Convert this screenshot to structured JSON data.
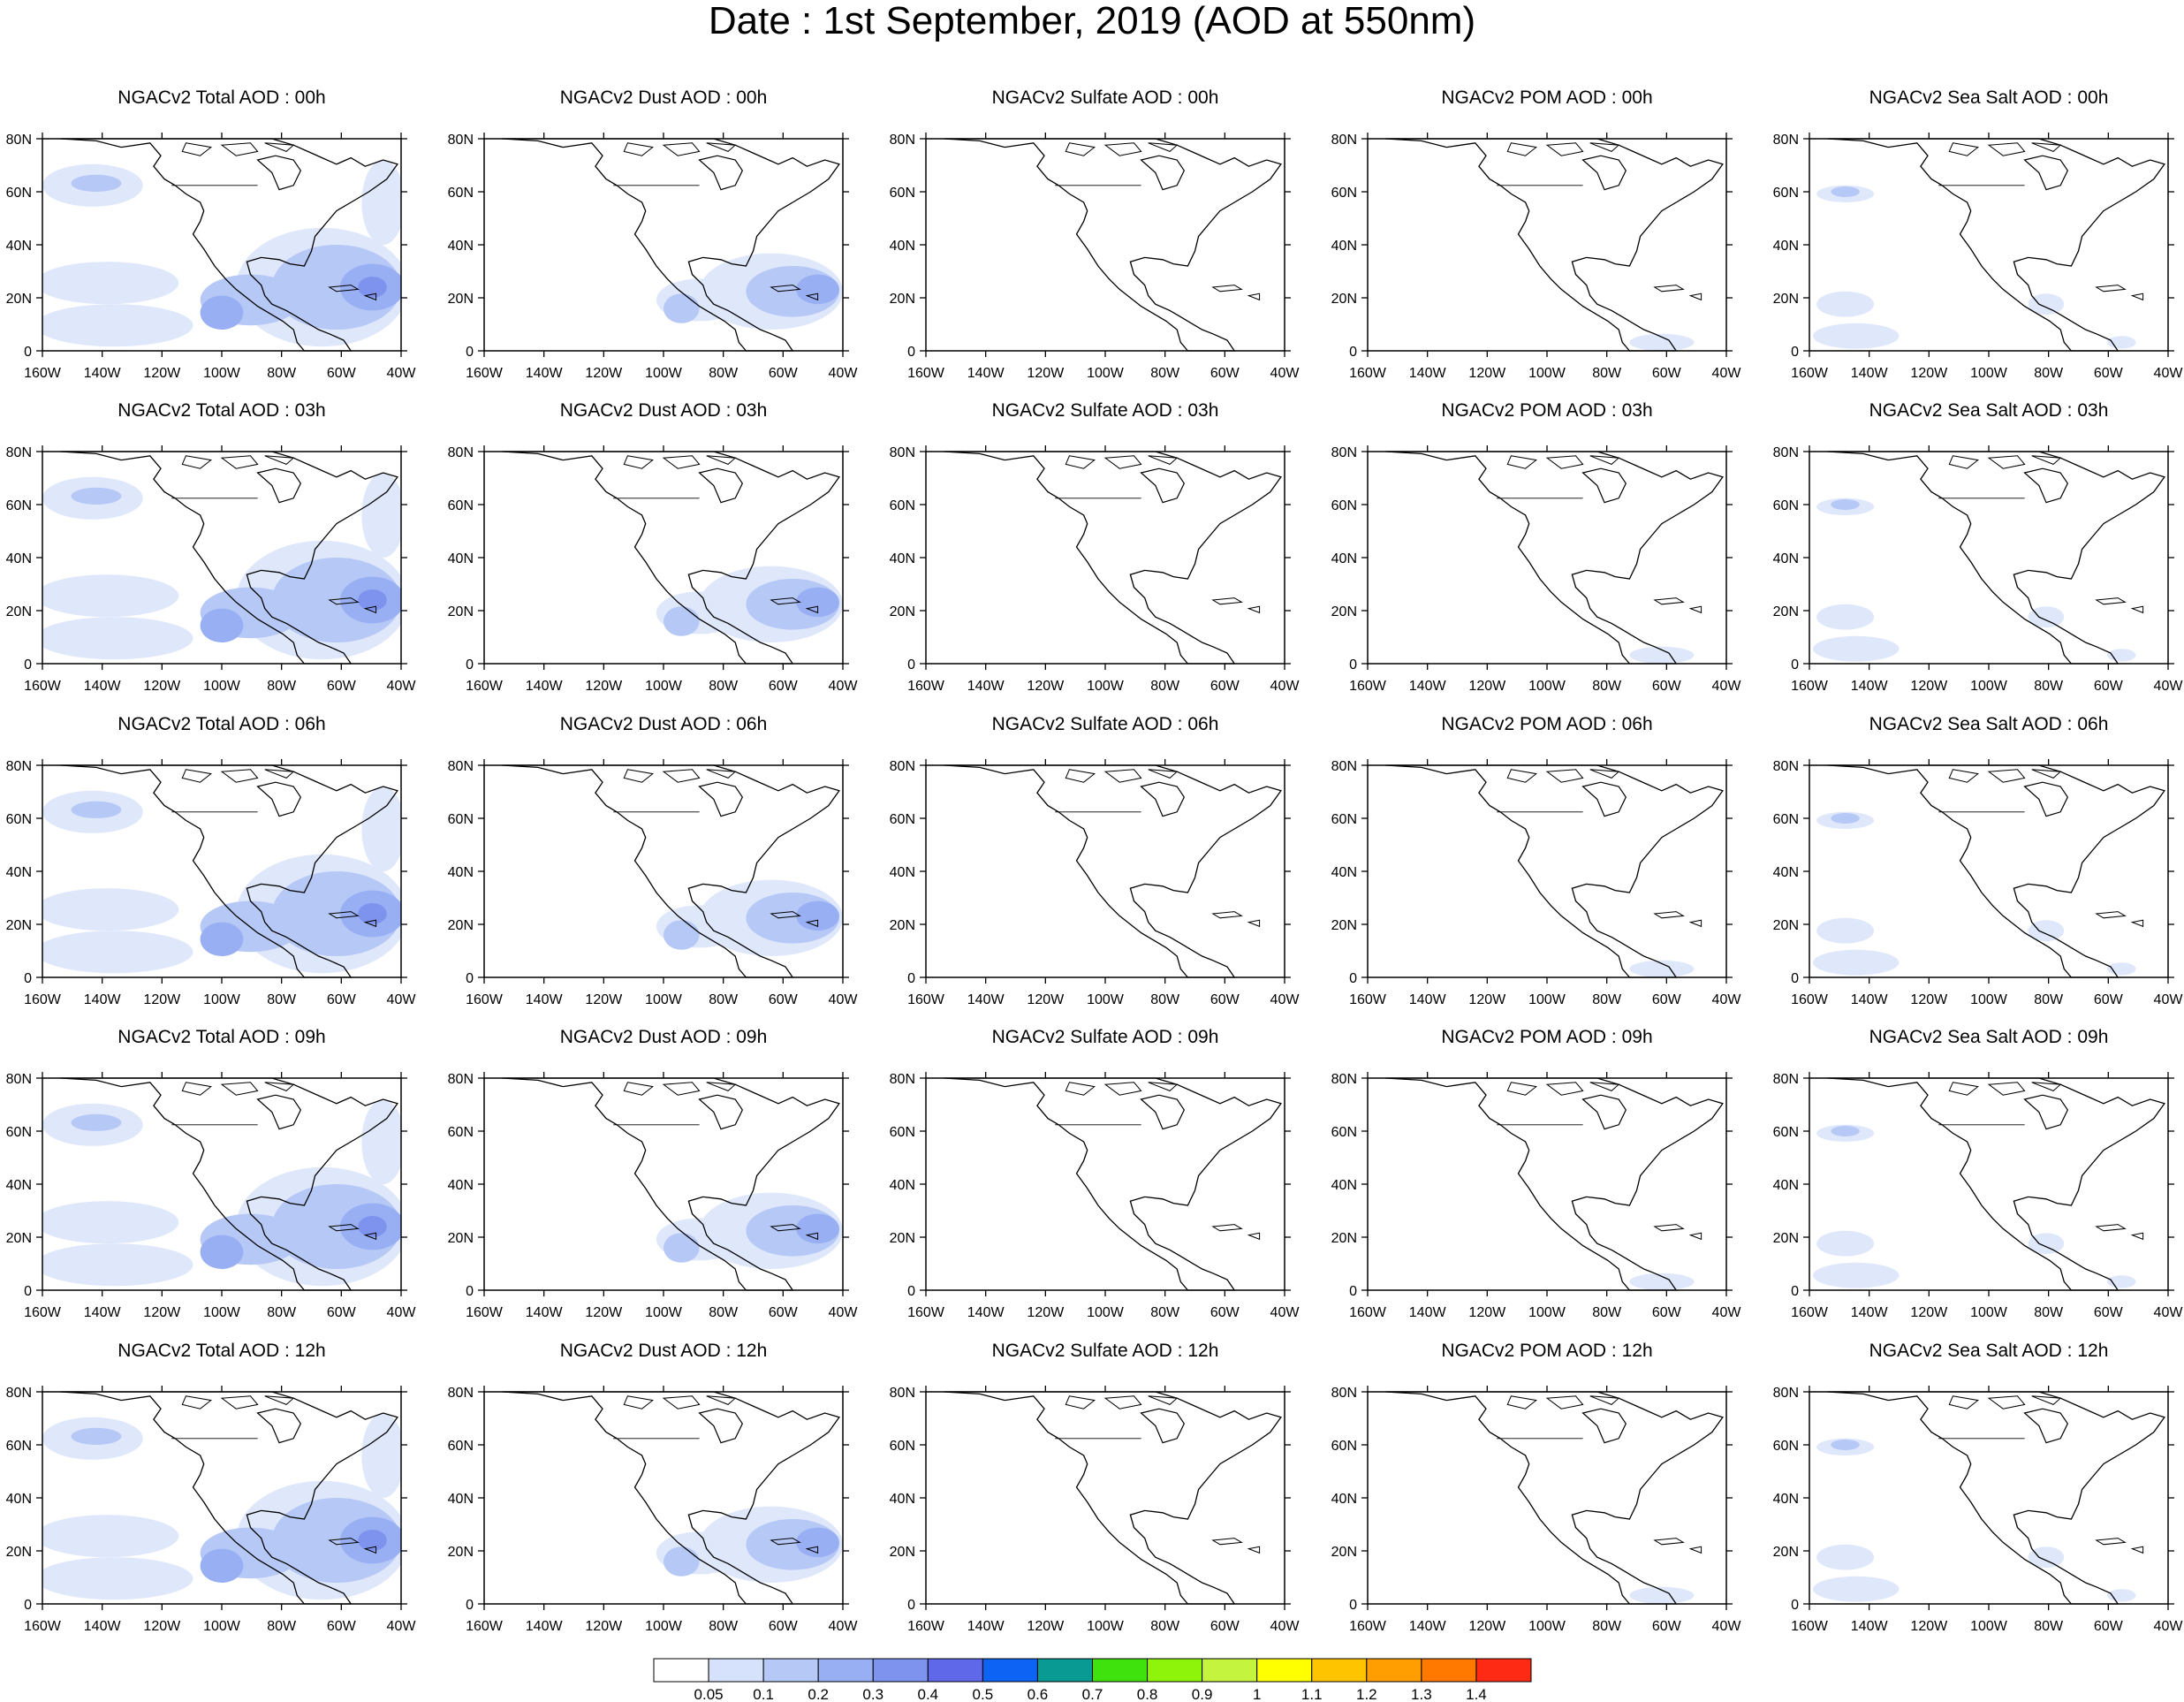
{
  "title": "Date : 1st September, 2019 (AOD at 550nm)",
  "x_ticks": [
    "160W",
    "140W",
    "120W",
    "100W",
    "80W",
    "60W",
    "40W"
  ],
  "y_ticks": [
    "80N",
    "60N",
    "40N",
    "20N",
    "0"
  ],
  "panels": [
    [
      "NGACv2 Total AOD : 00h",
      "NGACv2 Dust AOD : 00h",
      "NGACv2 Sulfate AOD : 00h",
      "NGACv2 POM AOD : 00h",
      "NGACv2 Sea Salt AOD : 00h"
    ],
    [
      "NGACv2 Total AOD : 03h",
      "NGACv2 Dust AOD : 03h",
      "NGACv2 Sulfate AOD : 03h",
      "NGACv2 POM AOD : 03h",
      "NGACv2 Sea Salt AOD : 03h"
    ],
    [
      "NGACv2 Total AOD : 06h",
      "NGACv2 Dust AOD : 06h",
      "NGACv2 Sulfate AOD : 06h",
      "NGACv2 POM AOD : 06h",
      "NGACv2 Sea Salt AOD : 06h"
    ],
    [
      "NGACv2 Total AOD : 09h",
      "NGACv2 Dust AOD : 09h",
      "NGACv2 Sulfate AOD : 09h",
      "NGACv2 POM AOD : 09h",
      "NGACv2 Sea Salt  AOD : 09h"
    ],
    [
      "NGACv2 Total AOD  : 12h",
      "NGACv2 Dust AOD : 12h",
      "NGACv2 Sulfate AOD : 12h",
      "NGACv2 POM  AOD : 12h",
      "NGACv2 Sea Salt  AOD : 12h"
    ]
  ],
  "colorbar": {
    "labels": [
      "0.05",
      "0.1",
      "0.2",
      "0.3",
      "0.4",
      "0.5",
      "0.6",
      "0.7",
      "0.8",
      "0.9",
      "1",
      "1.1",
      "1.2",
      "1.3",
      "1.4"
    ],
    "colors": [
      "#ffffff",
      "#d6e2fb",
      "#b6c8f6",
      "#99aff3",
      "#7e93ee",
      "#5f68e8",
      "#0d64f4",
      "#0a9a94",
      "#3fe20c",
      "#8ef40a",
      "#c4f43e",
      "#ffff00",
      "#ffc400",
      "#ff9e00",
      "#ff7800",
      "#ff2a14"
    ]
  },
  "shading_colors": {
    "light": "#dfe7fb",
    "medium": "#b6c8f6",
    "strong": "#99aff3",
    "deep": "#7e93ee"
  }
}
